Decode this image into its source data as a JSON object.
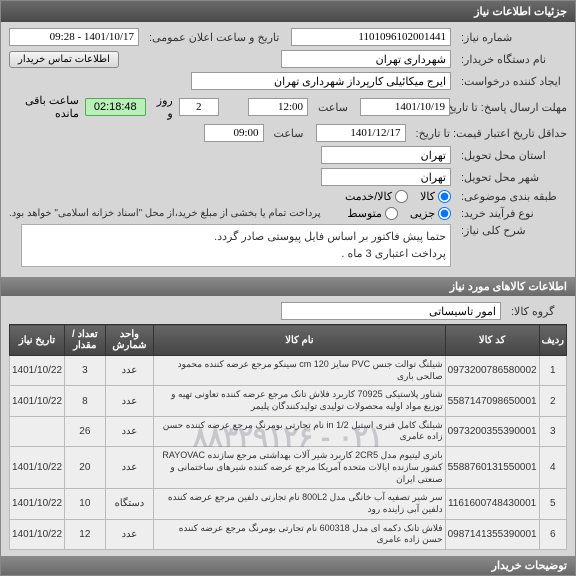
{
  "panel_title": "جزئیات اطلاعات نیاز",
  "form": {
    "req_no_label": "شماره نیاز:",
    "req_no": "1101096102001441",
    "announce_label": "تاریخ و ساعت اعلان عمومی:",
    "announce_val": "1401/10/17 - 09:28",
    "org_label": "نام دستگاه خریدار:",
    "org_val": "شهرداری تهران",
    "contact_btn": "اطلاعات تماس خریدار",
    "creator_label": "ایجاد کننده درخواست:",
    "creator_val": "ایرج میکائیلی کارپرداز شهرداری تهران",
    "deadline_label": "مهلت ارسال پاسخ: تا تاریخ:",
    "deadline_date": "1401/10/19",
    "time_label": "ساعت",
    "deadline_time": "12:00",
    "days_left": "2",
    "days_left_label": "روز و",
    "countdown": "02:18:48",
    "remain_label": "ساعت باقی مانده",
    "validity_label": "حداقل تاریخ اعتبار قیمت: تا تاریخ:",
    "validity_date": "1401/12/17",
    "validity_time": "09:00",
    "province_label": "استان محل تحویل:",
    "province_val": "تهران",
    "city_label": "شهر محل تحویل:",
    "city_val": "تهران",
    "class_label": "طبقه بندی موضوعی:",
    "class_opts": {
      "goods": "کالا",
      "service": "کالا/خدمت"
    },
    "buytype_label": "نوع فرآیند خرید:",
    "buytype_opts": {
      "minor": "جزیی",
      "medium": "متوسط"
    },
    "payment_note": "پرداخت تمام یا بخشی از مبلغ خرید،از محل \"اسناد خزانه اسلامی\" خواهد بود.",
    "desc_label": "شرح کلی نیاز:",
    "desc_text": "حتما پیش فاکتور بر اساس فایل پیوستی صادر گردد.\nپرداخت اعتباری 3 ماه ."
  },
  "goods_header": "اطلاعات کالاهای مورد نیاز",
  "group_label": "گروه کالا:",
  "group_val": "امور تاسیساتی",
  "watermark": "۰۲۱ - ۸۸۳۲۹۱۲۶",
  "table": {
    "columns": [
      "ردیف",
      "کد کالا",
      "نام کالا",
      "واحد شمارش",
      "تعداد / مقدار",
      "تاریخ نیاز"
    ],
    "rows": [
      {
        "idx": "1",
        "code": "0973200786580002",
        "name": "شیلنگ توالت جنس PVC سایز 120 cm سینکو مرجع عرضه کننده محمود صالحی باری",
        "unit": "عدد",
        "qty": "3",
        "date": "1401/10/22"
      },
      {
        "idx": "2",
        "code": "5587147098650001",
        "name": "شناور پلاستیکی 70925 کاربرد فلاش تانک مرجع عرضه کننده تعاونی تهیه و توزیع مواد اولیه محصولات تولیدی تولیدکنندگان پلیمر",
        "unit": "عدد",
        "qty": "8",
        "date": "1401/10/22"
      },
      {
        "idx": "3",
        "code": "0973200355390001",
        "name": "شیلنگ کامل فنری استیل 1/2 in نام تجارتی بومرنگ مرجع عرضه کننده حسن زاده عامری",
        "unit": "عدد",
        "qty": "26",
        "date": ""
      },
      {
        "idx": "4",
        "code": "5588760131550001",
        "name": "باتری لیتیوم مدل 2CR5 کاربرد شیر آلات بهداشتی مرجع سازنده RAYOVAC کشور سازنده ایالات متحده آمریکا مرجع عرضه کننده شیرهای ساختمانی و صنعتی ایران",
        "unit": "عدد",
        "qty": "20",
        "date": "1401/10/22"
      },
      {
        "idx": "5",
        "code": "1161600748430001",
        "name": "سر شیر تصفیه آب خانگی مدل 800L2 نام تجارتی دلفین مرجع عرضه کننده دلفین آبی زاینده رود",
        "unit": "دستگاه",
        "qty": "10",
        "date": "1401/10/22"
      },
      {
        "idx": "6",
        "code": "0987141355390001",
        "name": "فلاش تانک دکمه ای مدل 600318 نام تجارتی بومرنگ مرجع عرضه کننده حسن زاده عامری",
        "unit": "عدد",
        "qty": "12",
        "date": "1401/10/22"
      }
    ]
  },
  "footer_bar": "توضیحات خریدار"
}
